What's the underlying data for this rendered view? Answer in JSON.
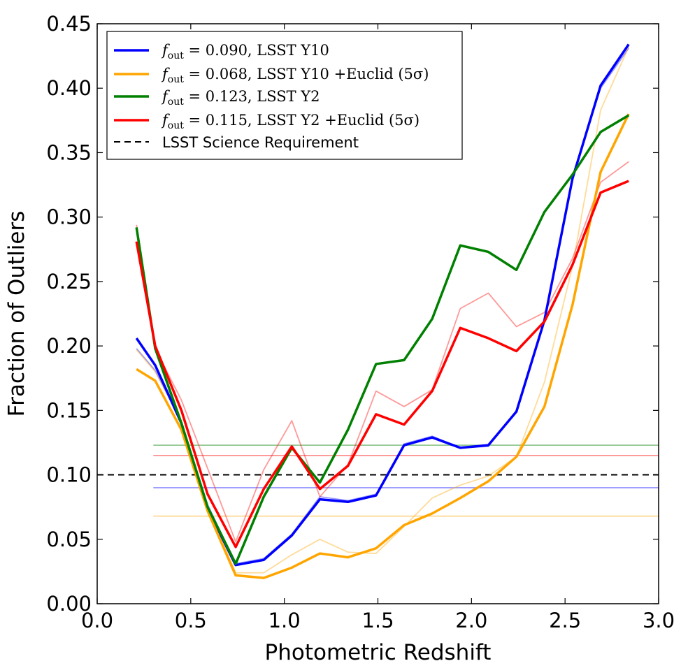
{
  "chart_data": {
    "type": "line",
    "xlabel": "Photometric Redshift",
    "ylabel": "Fraction of Outliers",
    "xlim": [
      0.0,
      3.0
    ],
    "ylim": [
      0.0,
      0.45
    ],
    "xticks": [
      "0.0",
      "0.5",
      "1.0",
      "1.5",
      "2.0",
      "2.5",
      "3.0"
    ],
    "yticks": [
      "0.00",
      "0.05",
      "0.10",
      "0.15",
      "0.20",
      "0.25",
      "0.30",
      "0.35",
      "0.40",
      "0.45"
    ],
    "x": [
      0.21,
      0.31,
      0.45,
      0.59,
      0.74,
      0.89,
      1.04,
      1.19,
      1.34,
      1.49,
      1.64,
      1.79,
      1.94,
      2.09,
      2.24,
      2.39,
      2.54,
      2.69,
      2.84
    ],
    "series": [
      {
        "name_math": "f",
        "name_sub": "out",
        "name_rest": " = 0.090, LSST Y10",
        "color": "#0000ff",
        "values": [
          0.206,
          0.185,
          0.14,
          0.074,
          0.03,
          0.034,
          0.053,
          0.081,
          0.079,
          0.084,
          0.123,
          0.129,
          0.121,
          0.123,
          0.149,
          0.22,
          0.33,
          0.402,
          0.434
        ],
        "values_light": [
          0.198,
          0.181,
          0.141,
          0.077,
          0.031,
          0.035,
          0.054,
          0.083,
          0.08,
          0.085,
          0.124,
          0.13,
          0.121,
          0.122,
          0.15,
          0.219,
          0.332,
          0.4,
          0.431
        ],
        "fout": 0.09
      },
      {
        "name_math": "f",
        "name_sub": "out",
        "name_rest": " = 0.068, LSST Y10 +Euclid (5σ)",
        "color": "#ffa500",
        "values": [
          0.182,
          0.173,
          0.135,
          0.072,
          0.022,
          0.02,
          0.028,
          0.039,
          0.036,
          0.043,
          0.061,
          0.07,
          0.082,
          0.095,
          0.114,
          0.153,
          0.232,
          0.335,
          0.38
        ],
        "values_light": [
          0.197,
          0.18,
          0.142,
          0.076,
          0.024,
          0.024,
          0.038,
          0.05,
          0.04,
          0.039,
          0.06,
          0.082,
          0.092,
          0.099,
          0.114,
          0.172,
          0.262,
          0.383,
          0.432
        ],
        "fout": 0.068
      },
      {
        "name_math": "f",
        "name_sub": "out",
        "name_rest": " = 0.123, LSST Y2",
        "color": "#008000",
        "values": [
          0.292,
          0.198,
          0.14,
          0.075,
          0.031,
          0.083,
          0.121,
          0.094,
          0.135,
          0.186,
          0.189,
          0.221,
          0.278,
          0.273,
          0.259,
          0.304,
          0.333,
          0.366,
          0.379
        ],
        "values_light": null,
        "fout": 0.123
      },
      {
        "name_math": "f",
        "name_sub": "out",
        "name_rest": " = 0.115, LSST Y2 +Euclid (5σ)",
        "color": "#ff0000",
        "values": [
          0.281,
          0.2,
          0.15,
          0.085,
          0.044,
          0.089,
          0.122,
          0.089,
          0.107,
          0.147,
          0.139,
          0.165,
          0.214,
          0.206,
          0.196,
          0.219,
          0.263,
          0.319,
          0.328
        ],
        "values_light": [
          0.294,
          0.198,
          0.158,
          0.105,
          0.048,
          0.104,
          0.142,
          0.083,
          0.108,
          0.165,
          0.153,
          0.166,
          0.229,
          0.241,
          0.215,
          0.226,
          0.268,
          0.327,
          0.343
        ],
        "fout": 0.115
      }
    ],
    "hlines_xstart": 0.3,
    "requirement": {
      "name": "LSST Science Requirement",
      "value": 0.1,
      "color": "#000000"
    },
    "legend_loc": "upper-left",
    "grid": false
  }
}
